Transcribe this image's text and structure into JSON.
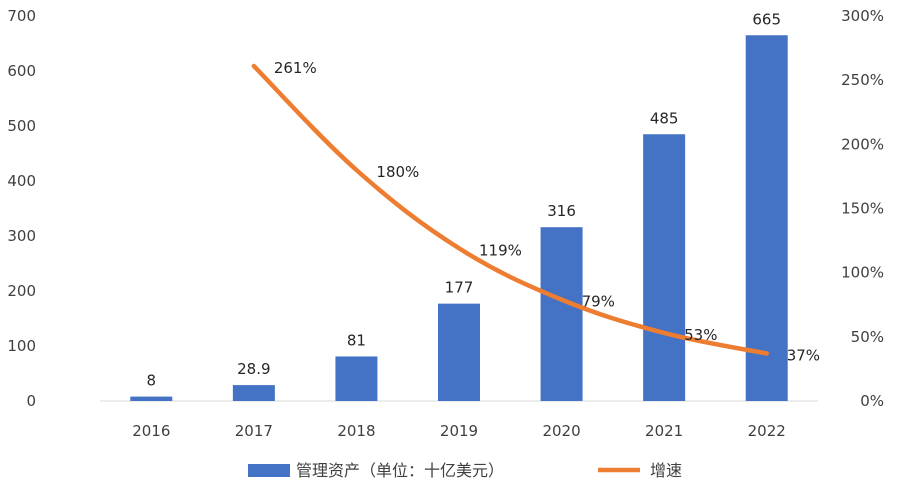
{
  "chart_data": {
    "type": "bar",
    "categories": [
      "2016",
      "2017",
      "2018",
      "2019",
      "2020",
      "2021",
      "2022"
    ],
    "series": [
      {
        "name": "管理资产（单位：十亿美元）",
        "type": "bar",
        "axis": "left",
        "values": [
          8,
          28.9,
          81,
          177,
          316,
          485,
          665
        ],
        "labels": [
          "8",
          "28.9",
          "81",
          "177",
          "316",
          "485",
          "665"
        ]
      },
      {
        "name": "增速",
        "type": "line",
        "axis": "right",
        "values": [
          null,
          261,
          180,
          119,
          79,
          53,
          37
        ],
        "labels": [
          "",
          "261%",
          "180%",
          "119%",
          "79%",
          "53%",
          "37%"
        ]
      }
    ],
    "y_left": {
      "min": 0,
      "max": 700,
      "ticks": [
        "0",
        "100",
        "200",
        "300",
        "400",
        "500",
        "600",
        "700"
      ]
    },
    "y_right": {
      "min": 0,
      "max": 300,
      "ticks": [
        "0%",
        "50%",
        "100%",
        "150%",
        "200%",
        "250%",
        "300%"
      ]
    },
    "grid": false,
    "legend_position": "bottom",
    "colors": {
      "bar": "#4472C4",
      "line": "#ED7D31",
      "text": "#404040",
      "axis": "#D9D9D9"
    }
  }
}
